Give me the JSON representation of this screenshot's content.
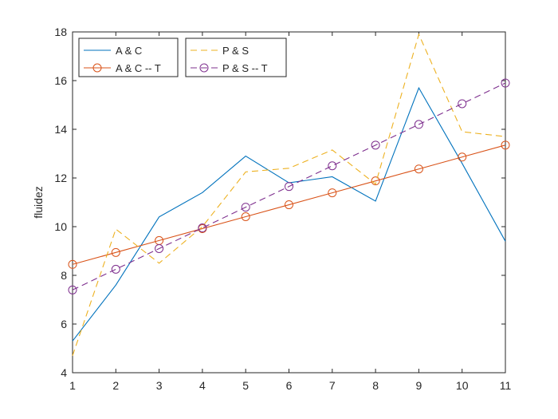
{
  "chart_data": {
    "type": "line",
    "title": "",
    "xlabel": "",
    "ylabel": "fluidez",
    "x": [
      1,
      2,
      3,
      4,
      5,
      6,
      7,
      8,
      9,
      10,
      11
    ],
    "xlim": [
      1,
      11
    ],
    "ylim": [
      4,
      18
    ],
    "xticks": [
      1,
      2,
      3,
      4,
      5,
      6,
      7,
      8,
      9,
      10,
      11
    ],
    "yticks": [
      4,
      6,
      8,
      10,
      12,
      14,
      16,
      18
    ],
    "grid": false,
    "legend_position": "top-left",
    "series": [
      {
        "name": "A & C",
        "color": "#0072BD",
        "style": "solid",
        "marker": "none",
        "values": [
          5.3,
          7.6,
          10.4,
          11.4,
          12.9,
          11.8,
          12.05,
          11.05,
          15.7,
          12.6,
          9.4
        ]
      },
      {
        "name": "A & C -- T",
        "color": "#D95319",
        "style": "solid",
        "marker": "circle",
        "values": [
          8.45,
          8.94,
          9.43,
          9.92,
          10.41,
          10.9,
          11.39,
          11.88,
          12.37,
          12.86,
          13.35
        ]
      },
      {
        "name": "P & S",
        "color": "#EDB120",
        "style": "dashed",
        "marker": "none",
        "values": [
          4.7,
          9.9,
          8.5,
          10.0,
          12.25,
          12.4,
          13.15,
          11.75,
          17.9,
          13.9,
          13.7
        ]
      },
      {
        "name": "P & S -- T",
        "color": "#7E2F8E",
        "style": "dashed",
        "marker": "circle",
        "values": [
          7.4,
          8.25,
          9.1,
          9.95,
          10.8,
          11.65,
          12.5,
          13.35,
          14.2,
          15.05,
          15.9
        ]
      }
    ]
  }
}
